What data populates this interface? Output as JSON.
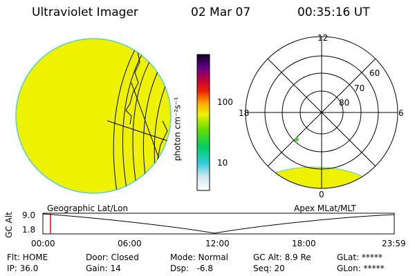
{
  "header": {
    "instrument": "Ultraviolet Imager",
    "date": "02 Mar 07",
    "time": "00:35:16 UT"
  },
  "colorbar": {
    "label": "photon cm⁻²s⁻¹",
    "ticks": [
      "100",
      "10"
    ]
  },
  "polar_plot": {
    "mlt_labels": [
      "12",
      "18",
      "6",
      "0"
    ],
    "mlat_labels": [
      "60",
      "70",
      "80"
    ]
  },
  "map_labels": {
    "geographic": "Geographic Lat/Lon",
    "apex": "Apex MLat/MLT"
  },
  "altitude_plot": {
    "ylabel": "GC Alt",
    "yticks": [
      "9.0",
      "1.8"
    ],
    "xticks": [
      "00:00",
      "06:00",
      "12:00",
      "18:00",
      "23:59"
    ]
  },
  "info": {
    "flt": "Flt: HOME",
    "door": "Door: Closed",
    "mode": "Mode: Normal",
    "gc_alt": "GC Alt: 8.9 Re",
    "glat": "GLat: *****",
    "ip": "IP: 36.0",
    "gain": "Gain: 14",
    "dsp": "Dsp:   -6.8",
    "seq": "Seq: 20",
    "glon": "GLon: *****"
  },
  "colors": {
    "image_fill": "#eef200",
    "image_edge": "#55ccdd",
    "cursor": "#ff0000"
  }
}
